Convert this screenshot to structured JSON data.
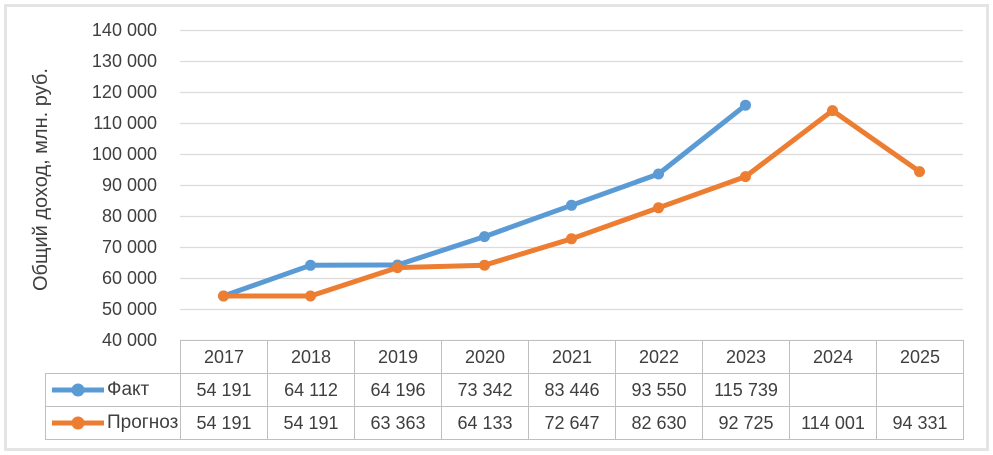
{
  "chart_data": {
    "type": "line",
    "title": "",
    "xlabel": "",
    "ylabel": "Общий доход, млн. руб.",
    "categories": [
      "2017",
      "2018",
      "2019",
      "2020",
      "2021",
      "2022",
      "2023",
      "2024",
      "2025"
    ],
    "ylim": [
      40000,
      140000
    ],
    "grid": true,
    "legend_position": "table-left",
    "grid_color": "#dcdcdc",
    "table_border_color": "#bfbfbf",
    "y_ticks": [
      {
        "value": 40000,
        "label": "40 000"
      },
      {
        "value": 50000,
        "label": "50 000"
      },
      {
        "value": 60000,
        "label": "60 000"
      },
      {
        "value": 70000,
        "label": "70 000"
      },
      {
        "value": 80000,
        "label": "80 000"
      },
      {
        "value": 90000,
        "label": "90 000"
      },
      {
        "value": 100000,
        "label": "100 000"
      },
      {
        "value": 110000,
        "label": "110 000"
      },
      {
        "value": 120000,
        "label": "120 000"
      },
      {
        "value": 130000,
        "label": "130 000"
      },
      {
        "value": 140000,
        "label": "140 000"
      }
    ],
    "series": [
      {
        "name": "Факт",
        "color": "#5B9BD5",
        "values": [
          54191,
          64112,
          64196,
          73342,
          83446,
          93550,
          115739,
          null,
          null
        ],
        "display": [
          "54 191",
          "64 112",
          "64 196",
          "73 342",
          "83 446",
          "93 550",
          "115 739",
          "",
          ""
        ]
      },
      {
        "name": "Прогноз",
        "color": "#ED7D31",
        "values": [
          54191,
          54191,
          63363,
          64133,
          72647,
          82630,
          92725,
          114001,
          94331
        ],
        "display": [
          "54 191",
          "54 191",
          "63 363",
          "64 133",
          "72 647",
          "82 630",
          "92 725",
          "114 001",
          "94 331"
        ]
      }
    ]
  }
}
